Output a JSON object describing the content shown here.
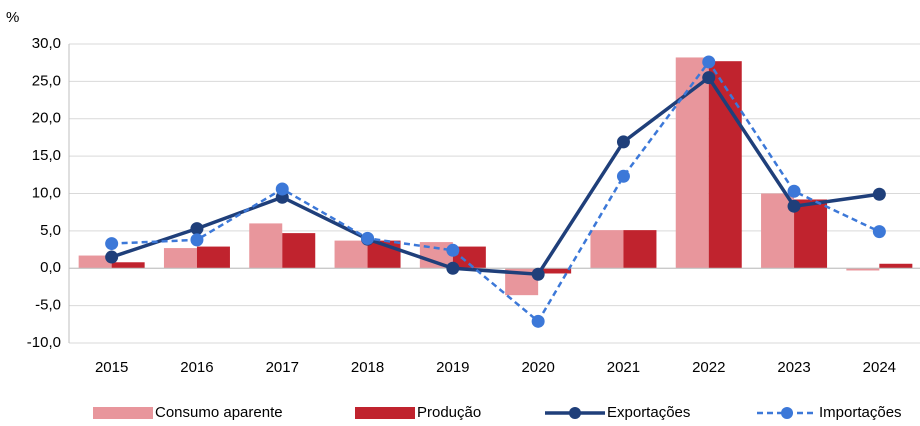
{
  "chart_data": {
    "type": "bar_line",
    "y_label": "%",
    "categories": [
      "2015",
      "2016",
      "2017",
      "2018",
      "2019",
      "2020",
      "2021",
      "2022",
      "2023",
      "2024"
    ],
    "series": [
      {
        "name": "Consumo aparente",
        "kind": "bar",
        "color": "#e8969c",
        "values": [
          1.7,
          2.7,
          6.0,
          3.7,
          3.5,
          -3.6,
          5.1,
          28.2,
          10.0,
          -0.3
        ]
      },
      {
        "name": "Produção",
        "kind": "bar",
        "color": "#c0232e",
        "values": [
          0.8,
          2.9,
          4.7,
          3.7,
          2.9,
          -0.7,
          5.1,
          27.7,
          9.2,
          0.6
        ]
      },
      {
        "name": "Exportações",
        "kind": "line",
        "dash": "solid",
        "color": "#1f3f7a",
        "values": [
          1.5,
          5.3,
          9.5,
          3.9,
          0.0,
          -0.8,
          16.9,
          25.5,
          8.3,
          9.9
        ]
      },
      {
        "name": "Importações",
        "kind": "line",
        "dash": "dashed",
        "color": "#3c78d8",
        "values": [
          3.3,
          3.8,
          10.6,
          4.0,
          2.4,
          -7.1,
          12.3,
          27.6,
          10.3,
          4.9
        ]
      }
    ],
    "ylim": [
      -10,
      30
    ],
    "yticks": [
      {
        "value": -10,
        "label": "-10,0"
      },
      {
        "value": -5,
        "label": "-5,0"
      },
      {
        "value": 0,
        "label": "0,0"
      },
      {
        "value": 5,
        "label": "5,0"
      },
      {
        "value": 10,
        "label": "10,0"
      },
      {
        "value": 15,
        "label": "15,0"
      },
      {
        "value": 20,
        "label": "20,0"
      },
      {
        "value": 25,
        "label": "25,0"
      },
      {
        "value": 30,
        "label": "30,0"
      }
    ],
    "grid": true,
    "legend": "bottom"
  }
}
